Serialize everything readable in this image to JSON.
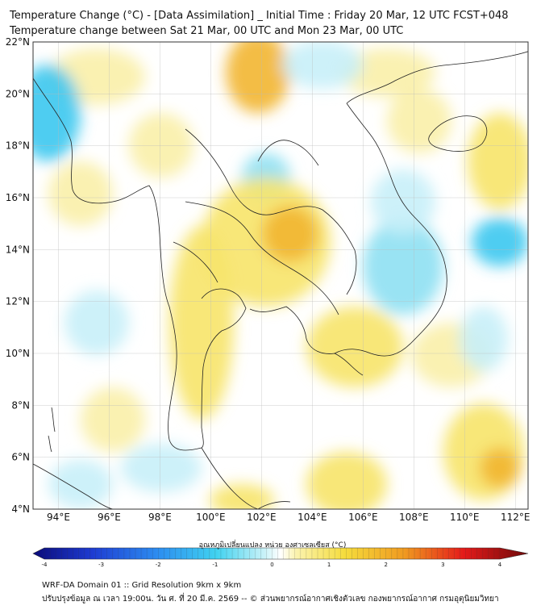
{
  "title": {
    "line1": "Temperature Change (°C) - [Data Assimilation] _ Initial Time : Friday 20 Mar, 12 UTC FCST+048",
    "line2": "Temperature change between Sat 21 Mar, 00 UTC and Mon 23 Mar, 00 UTC"
  },
  "map": {
    "lat_labels": [
      "4°N",
      "6°N",
      "8°N",
      "10°N",
      "12°N",
      "14°N",
      "16°N",
      "18°N",
      "20°N",
      "22°N"
    ],
    "lon_labels": [
      "94°E",
      "96°E",
      "98°E",
      "100°E",
      "102°E",
      "104°E",
      "106°E",
      "108°E",
      "110°E",
      "112°E"
    ],
    "lat_range": [
      4,
      22
    ],
    "lon_range": [
      93,
      112.5
    ],
    "grid": true
  },
  "colorbar": {
    "title": "อุณหภูมิเปลี่ยนแปลง หน่วย องศาเซลเซียส (°C)",
    "ticks": [
      "-4",
      "-3",
      "-2",
      "-1",
      "0",
      "1",
      "2",
      "3",
      "4"
    ],
    "range": [
      -4,
      4
    ]
  },
  "footer": {
    "line1": "WRF-DA Domain 01 :: Grid Resolution 9km x 9km",
    "line2": "ปรับปรุงข้อมูล ณ เวลา 19:00น. วัน ศ. ที่ 20 มี.ค. 2569 -- © ส่วนพยากรณ์อากาศเชิงตัวเลข กองพยากรณ์อากาศ กรมอุตุนิยมวิทยา"
  }
}
